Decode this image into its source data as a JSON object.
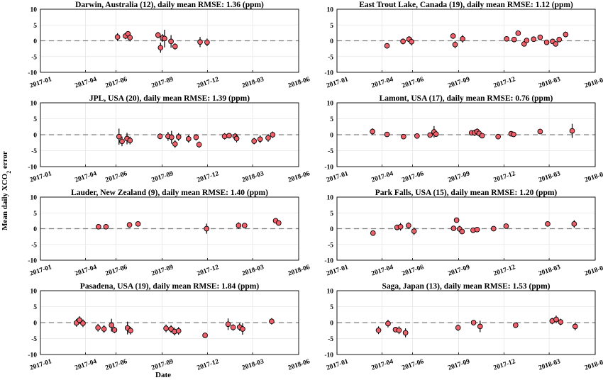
{
  "figure": {
    "ylabel_main": "Mean daily XCO",
    "ylabel_sub": "2",
    "ylabel_tail": " error",
    "xlabel": "Date"
  },
  "style": {
    "marker_fill": "#f0606a",
    "marker_stroke": "#000000",
    "errorbar_color": "#000000",
    "zero_line_color": "#808080",
    "grid_color": "#e6e6e6"
  },
  "chart_data": [
    {
      "type": "scatter",
      "title": "Darwin, Australia (12), daily mean RMSE: 1.36 (ppm)",
      "xlim": [
        "2017-01-01",
        "2018-06-01"
      ],
      "ylim": [
        -10,
        10
      ],
      "yticks": [
        -10,
        -5,
        0,
        5,
        10
      ],
      "xticks": [
        "2017-01",
        "2017-04",
        "2017-06",
        "2017-09",
        "2017-12",
        "2018-03",
        "2018-06"
      ],
      "grid": true,
      "points": [
        {
          "x": "2017-06-04",
          "y": 1.2,
          "err": 1.2
        },
        {
          "x": "2017-06-20",
          "y": 1.5,
          "err": 1.0
        },
        {
          "x": "2017-06-25",
          "y": 2.2,
          "err": 0.8
        },
        {
          "x": "2017-06-29",
          "y": 1.0,
          "err": 1.2
        },
        {
          "x": "2017-08-24",
          "y": 1.8,
          "err": 1.0
        },
        {
          "x": "2017-08-29",
          "y": -2.2,
          "err": 1.6
        },
        {
          "x": "2017-09-02",
          "y": 0.9,
          "err": 1.2
        },
        {
          "x": "2017-09-06",
          "y": 0.7,
          "err": 2.8
        },
        {
          "x": "2017-09-19",
          "y": -0.2,
          "err": 2.0
        },
        {
          "x": "2017-09-27",
          "y": -1.8,
          "err": 1.0
        },
        {
          "x": "2017-11-16",
          "y": -0.4,
          "err": 1.6
        },
        {
          "x": "2017-11-30",
          "y": -0.5,
          "err": 1.2
        }
      ]
    },
    {
      "type": "scatter",
      "title": "East Trout Lake, Canada (19), daily mean RMSE: 1.12 (ppm)",
      "xlim": [
        "2017-01-01",
        "2018-06-01"
      ],
      "ylim": [
        -10,
        10
      ],
      "yticks": [
        -10,
        -5,
        0,
        5,
        10
      ],
      "xticks": [
        "2017-01",
        "2017-04",
        "2017-06",
        "2017-09",
        "2017-12",
        "2018-03",
        "2018-06"
      ],
      "grid": true,
      "points": [
        {
          "x": "2017-04-11",
          "y": -1.6,
          "err": 0.6
        },
        {
          "x": "2017-05-13",
          "y": -0.2,
          "err": 0.9
        },
        {
          "x": "2017-05-25",
          "y": 0.5,
          "err": 0.9
        },
        {
          "x": "2017-05-30",
          "y": -0.3,
          "err": 1.2
        },
        {
          "x": "2017-08-21",
          "y": 1.5,
          "err": 0.9
        },
        {
          "x": "2017-08-25",
          "y": -1.2,
          "err": 1.2
        },
        {
          "x": "2017-09-09",
          "y": 0.6,
          "err": 1.2
        },
        {
          "x": "2017-12-06",
          "y": 0.6,
          "err": 0.4
        },
        {
          "x": "2017-12-21",
          "y": 0.4,
          "err": 0.4
        },
        {
          "x": "2017-12-29",
          "y": 2.4,
          "err": 0.6
        },
        {
          "x": "2018-01-10",
          "y": -1.0,
          "err": 0.7
        },
        {
          "x": "2018-01-15",
          "y": 0.1,
          "err": 0.5
        },
        {
          "x": "2018-01-29",
          "y": 0.5,
          "err": 0.4
        },
        {
          "x": "2018-02-11",
          "y": 1.1,
          "err": 0.4
        },
        {
          "x": "2018-02-24",
          "y": -0.5,
          "err": 0.5
        },
        {
          "x": "2018-03-08",
          "y": -0.2,
          "err": 0.5
        },
        {
          "x": "2018-03-14",
          "y": -1.0,
          "err": 0.5
        },
        {
          "x": "2018-03-21",
          "y": 0.4,
          "err": 0.6
        },
        {
          "x": "2018-04-03",
          "y": 2.0,
          "err": 0.9
        }
      ]
    },
    {
      "type": "scatter",
      "title": "JPL, USA (20), daily mean RMSE: 1.39 (ppm)",
      "xlim": [
        "2017-01-01",
        "2018-06-01"
      ],
      "ylim": [
        -10,
        10
      ],
      "yticks": [
        -10,
        -5,
        0,
        5,
        10
      ],
      "xticks": [
        "2017-01",
        "2017-04",
        "2017-06",
        "2017-09",
        "2017-12",
        "2018-03",
        "2018-06"
      ],
      "grid": true,
      "points": [
        {
          "x": "2017-06-07",
          "y": -0.6,
          "err": 2.5
        },
        {
          "x": "2017-06-13",
          "y": -2.1,
          "err": 1.5
        },
        {
          "x": "2017-06-23",
          "y": -1.2,
          "err": 1.8
        },
        {
          "x": "2017-06-29",
          "y": -1.8,
          "err": 1.2
        },
        {
          "x": "2017-08-28",
          "y": -0.5,
          "err": 0.9
        },
        {
          "x": "2017-09-13",
          "y": -0.5,
          "err": 1.4
        },
        {
          "x": "2017-09-20",
          "y": -0.8,
          "err": 2.0
        },
        {
          "x": "2017-09-27",
          "y": -2.9,
          "err": 1.2
        },
        {
          "x": "2017-10-04",
          "y": -0.7,
          "err": 1.2
        },
        {
          "x": "2017-10-24",
          "y": -1.3,
          "err": 1.2
        },
        {
          "x": "2017-11-08",
          "y": -0.8,
          "err": 1.0
        },
        {
          "x": "2017-11-14",
          "y": -3.1,
          "err": 1.0
        },
        {
          "x": "2018-01-04",
          "y": -0.5,
          "err": 1.0
        },
        {
          "x": "2018-01-13",
          "y": -0.3,
          "err": 0.7
        },
        {
          "x": "2018-01-25",
          "y": -0.5,
          "err": 1.0
        },
        {
          "x": "2018-01-28",
          "y": -1.2,
          "err": 1.2
        },
        {
          "x": "2018-03-04",
          "y": -2.0,
          "err": 1.0
        },
        {
          "x": "2018-03-16",
          "y": -1.4,
          "err": 1.2
        },
        {
          "x": "2018-04-01",
          "y": -1.0,
          "err": 1.2
        },
        {
          "x": "2018-04-10",
          "y": 0.0,
          "err": 1.0
        }
      ]
    },
    {
      "type": "scatter",
      "title": "Lamont, USA (17), daily mean RMSE: 0.76 (ppm)",
      "xlim": [
        "2017-01-01",
        "2018-06-01"
      ],
      "ylim": [
        -10,
        10
      ],
      "yticks": [
        -10,
        -5,
        0,
        5,
        10
      ],
      "xticks": [
        "2017-01",
        "2017-04",
        "2017-06",
        "2017-09",
        "2017-12",
        "2018-03",
        "2018-06"
      ],
      "grid": true,
      "points": [
        {
          "x": "2017-03-13",
          "y": 1.0,
          "err": 1.0
        },
        {
          "x": "2017-04-11",
          "y": 0.1,
          "err": 0.7
        },
        {
          "x": "2017-05-14",
          "y": -0.6,
          "err": 0.5
        },
        {
          "x": "2017-06-10",
          "y": -0.4,
          "err": 0.5
        },
        {
          "x": "2017-07-06",
          "y": -0.1,
          "err": 0.7
        },
        {
          "x": "2017-07-14",
          "y": 0.9,
          "err": 1.8
        },
        {
          "x": "2017-07-18",
          "y": 0.2,
          "err": 0.6
        },
        {
          "x": "2017-09-27",
          "y": 0.6,
          "err": 0.6
        },
        {
          "x": "2017-10-03",
          "y": 0.6,
          "err": 1.0
        },
        {
          "x": "2017-10-08",
          "y": 1.0,
          "err": 1.0
        },
        {
          "x": "2017-10-12",
          "y": 0.4,
          "err": 1.0
        },
        {
          "x": "2017-10-18",
          "y": -0.3,
          "err": 0.8
        },
        {
          "x": "2017-11-19",
          "y": -0.6,
          "err": 0.5
        },
        {
          "x": "2017-12-15",
          "y": 0.3,
          "err": 0.8
        },
        {
          "x": "2017-12-20",
          "y": 0.1,
          "err": 0.8
        },
        {
          "x": "2018-02-11",
          "y": 1.0,
          "err": 0.8
        },
        {
          "x": "2018-04-16",
          "y": 1.2,
          "err": 2.2
        }
      ]
    },
    {
      "type": "scatter",
      "title": "Lauder, New Zealand (9), daily mean RMSE: 1.40 (ppm)",
      "xlim": [
        "2017-01-01",
        "2018-06-01"
      ],
      "ylim": [
        -10,
        10
      ],
      "yticks": [
        -10,
        -5,
        0,
        5,
        10
      ],
      "xticks": [
        "2017-01",
        "2017-04",
        "2017-06",
        "2017-09",
        "2017-12",
        "2018-03",
        "2018-06"
      ],
      "grid": true,
      "points": [
        {
          "x": "2017-04-27",
          "y": 0.6,
          "err": 0.8
        },
        {
          "x": "2017-05-12",
          "y": 0.6,
          "err": 0.8
        },
        {
          "x": "2017-06-28",
          "y": 1.2,
          "err": 0.8
        },
        {
          "x": "2017-07-15",
          "y": 1.5,
          "err": 0.8
        },
        {
          "x": "2017-11-29",
          "y": 0.0,
          "err": 1.6
        },
        {
          "x": "2018-02-01",
          "y": 1.0,
          "err": 1.0
        },
        {
          "x": "2018-02-13",
          "y": 1.0,
          "err": 0.8
        },
        {
          "x": "2018-04-16",
          "y": 2.5,
          "err": 0.8
        },
        {
          "x": "2018-04-22",
          "y": 1.8,
          "err": 0.8
        }
      ]
    },
    {
      "type": "scatter",
      "title": "Park Falls, USA (15), daily mean RMSE: 1.20 (ppm)",
      "xlim": [
        "2017-01-01",
        "2018-06-01"
      ],
      "ylim": [
        -10,
        10
      ],
      "yticks": [
        -10,
        -5,
        0,
        5,
        10
      ],
      "xticks": [
        "2017-01",
        "2017-04",
        "2017-06",
        "2017-09",
        "2017-12",
        "2018-03",
        "2018-06"
      ],
      "grid": true,
      "points": [
        {
          "x": "2017-03-14",
          "y": -1.4,
          "err": 0.5
        },
        {
          "x": "2017-05-01",
          "y": 0.4,
          "err": 0.9
        },
        {
          "x": "2017-05-08",
          "y": 0.6,
          "err": 1.2
        },
        {
          "x": "2017-05-24",
          "y": 1.0,
          "err": 1.0
        },
        {
          "x": "2017-06-04",
          "y": -0.8,
          "err": 1.2
        },
        {
          "x": "2017-08-22",
          "y": 0.1,
          "err": 0.8
        },
        {
          "x": "2017-08-28",
          "y": 2.7,
          "err": 0.6
        },
        {
          "x": "2017-09-03",
          "y": -0.1,
          "err": 1.0
        },
        {
          "x": "2017-09-08",
          "y": -0.9,
          "err": 0.8
        },
        {
          "x": "2017-09-30",
          "y": -0.5,
          "err": 0.6
        },
        {
          "x": "2017-10-08",
          "y": -0.3,
          "err": 0.6
        },
        {
          "x": "2017-11-10",
          "y": 0.0,
          "err": 0.5
        },
        {
          "x": "2017-12-05",
          "y": 0.8,
          "err": 0.6
        },
        {
          "x": "2018-02-26",
          "y": 1.5,
          "err": 0.8
        },
        {
          "x": "2018-04-20",
          "y": 1.5,
          "err": 1.2
        }
      ]
    },
    {
      "type": "scatter",
      "title": "Pasadena, USA (19), daily mean RMSE: 1.84 (ppm)",
      "xlim": [
        "2017-01-01",
        "2018-06-01"
      ],
      "ylim": [
        -10,
        10
      ],
      "yticks": [
        -10,
        -5,
        0,
        5,
        10
      ],
      "xticks": [
        "2017-01",
        "2017-04",
        "2017-06",
        "2017-09",
        "2017-12",
        "2018-03",
        "2018-06"
      ],
      "grid": true,
      "points": [
        {
          "x": "2017-03-14",
          "y": -0.1,
          "err": 1.2
        },
        {
          "x": "2017-03-20",
          "y": 0.8,
          "err": 1.2
        },
        {
          "x": "2017-03-27",
          "y": -0.2,
          "err": 1.2
        },
        {
          "x": "2017-04-26",
          "y": -1.6,
          "err": 1.2
        },
        {
          "x": "2017-05-08",
          "y": -2.0,
          "err": 1.2
        },
        {
          "x": "2017-05-23",
          "y": -0.8,
          "err": 2.0
        },
        {
          "x": "2017-05-29",
          "y": -2.3,
          "err": 1.0
        },
        {
          "x": "2017-06-24",
          "y": -1.7,
          "err": 2.0
        },
        {
          "x": "2017-06-30",
          "y": -2.5,
          "err": 1.2
        },
        {
          "x": "2017-09-09",
          "y": -1.8,
          "err": 1.2
        },
        {
          "x": "2017-09-19",
          "y": -2.0,
          "err": 1.2
        },
        {
          "x": "2017-09-26",
          "y": -2.8,
          "err": 1.2
        },
        {
          "x": "2017-10-04",
          "y": -2.6,
          "err": 1.2
        },
        {
          "x": "2017-11-26",
          "y": -4.0,
          "err": 0.8
        },
        {
          "x": "2018-01-11",
          "y": -0.5,
          "err": 1.8
        },
        {
          "x": "2018-01-21",
          "y": -1.5,
          "err": 1.0
        },
        {
          "x": "2018-02-03",
          "y": -1.4,
          "err": 1.2
        },
        {
          "x": "2018-02-09",
          "y": -2.0,
          "err": 1.8
        },
        {
          "x": "2018-04-08",
          "y": 0.4,
          "err": 1.0
        }
      ]
    },
    {
      "type": "scatter",
      "title": "Saga, Japan (13), daily mean RMSE: 1.53 (ppm)",
      "xlim": [
        "2017-01-01",
        "2018-06-01"
      ],
      "ylim": [
        -10,
        10
      ],
      "yticks": [
        -10,
        -5,
        0,
        5,
        10
      ],
      "xticks": [
        "2017-01",
        "2017-04",
        "2017-06",
        "2017-09",
        "2017-12",
        "2018-03",
        "2018-06"
      ],
      "grid": true,
      "points": [
        {
          "x": "2017-03-25",
          "y": -2.4,
          "err": 1.2
        },
        {
          "x": "2017-04-13",
          "y": -0.3,
          "err": 1.2
        },
        {
          "x": "2017-04-28",
          "y": -2.2,
          "err": 0.8
        },
        {
          "x": "2017-05-05",
          "y": -2.4,
          "err": 1.2
        },
        {
          "x": "2017-05-18",
          "y": -3.2,
          "err": 1.4
        },
        {
          "x": "2017-08-31",
          "y": -1.6,
          "err": 1.0
        },
        {
          "x": "2017-10-01",
          "y": 0.0,
          "err": 0.8
        },
        {
          "x": "2017-10-14",
          "y": -1.2,
          "err": 1.8
        },
        {
          "x": "2017-12-24",
          "y": -0.8,
          "err": 0.6
        },
        {
          "x": "2018-03-07",
          "y": 0.5,
          "err": 1.0
        },
        {
          "x": "2018-03-15",
          "y": 1.0,
          "err": 1.2
        },
        {
          "x": "2018-03-24",
          "y": 0.2,
          "err": 1.0
        },
        {
          "x": "2018-04-22",
          "y": -1.2,
          "err": 1.2
        }
      ]
    }
  ]
}
